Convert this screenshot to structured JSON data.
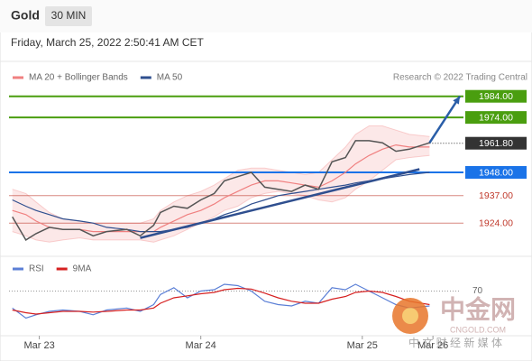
{
  "header": {
    "symbol": "Gold",
    "interval": "30 MIN",
    "timestamp": "Friday, March 25, 2022 2:50:41 AM CET"
  },
  "source": "Research © 2022 Trading Central",
  "watermark": {
    "brand": "中金网",
    "site": "CNGOLD.COM",
    "tagline": "中 文 财 经 新 媒 体"
  },
  "chart_data": [
    {
      "type": "line",
      "x": [
        -4,
        -2,
        -0.5,
        1.5,
        3.5,
        6,
        8,
        10,
        13,
        15,
        17,
        18,
        20,
        22,
        24,
        26,
        27.5,
        29.5,
        31.5,
        33.5,
        35.5,
        37.5,
        39.5,
        41.5,
        43.5,
        45.5,
        47,
        49,
        51,
        53,
        55,
        58
      ],
      "values": [
        1927,
        1916,
        1919,
        1922,
        1921,
        1921,
        1918,
        1920,
        1921,
        1918,
        1923,
        1929,
        1932,
        1931,
        1935,
        1938,
        1944,
        1946,
        1948,
        1941,
        1940,
        1939,
        1942,
        1940,
        1953,
        1955,
        1963,
        1963,
        1962,
        1958,
        1959,
        1962
      ],
      "color": "#555555",
      "series": [
        {
          "name": "MA 20 + Bollinger Bands",
          "color": "#f08080",
          "values": [
            1930,
            1928,
            1925,
            1922,
            1921,
            1921,
            1920,
            1920,
            1920,
            1920,
            1920,
            1922,
            1925,
            1928,
            1930,
            1933,
            1936,
            1939,
            1942,
            1944,
            1944,
            1943,
            1942,
            1941,
            1944,
            1948,
            1952,
            1956,
            1959,
            1961,
            1960,
            1960
          ],
          "upper": [
            1940,
            1938,
            1934,
            1929,
            1926,
            1925,
            1924,
            1924,
            1924,
            1924,
            1926,
            1930,
            1934,
            1937,
            1939,
            1942,
            1945,
            1949,
            1950,
            1950,
            1949,
            1948,
            1947,
            1948,
            1954,
            1960,
            1966,
            1970,
            1970,
            1968,
            1966,
            1965
          ],
          "lower": [
            1920,
            1918,
            1916,
            1915,
            1916,
            1917,
            1916,
            1916,
            1916,
            1916,
            1915,
            1916,
            1918,
            1921,
            1924,
            1927,
            1930,
            1932,
            1936,
            1938,
            1939,
            1938,
            1937,
            1935,
            1934,
            1936,
            1940,
            1944,
            1949,
            1954,
            1955,
            1956
          ]
        },
        {
          "name": "MA 50",
          "color": "#2f4f8f",
          "values": [
            1935,
            1932,
            1930,
            1928,
            1926,
            1925,
            1924,
            1922,
            1921,
            1920,
            1920,
            1920,
            1921,
            1922,
            1924,
            1926,
            1928,
            1930,
            1933,
            1935,
            1937,
            1938,
            1939,
            1940,
            1941,
            1942,
            1943,
            1944,
            1945,
            1946,
            1947,
            1948
          ]
        }
      ],
      "levels": [
        {
          "value": 1984,
          "label": "1984.00",
          "color": "#4a9e0f",
          "filled": true
        },
        {
          "value": 1974,
          "label": "1974.00",
          "color": "#4a9e0f",
          "filled": true
        },
        {
          "value": 1961.8,
          "label": "1961.80",
          "color": "#333333",
          "filled": true,
          "dotted": true
        },
        {
          "value": 1948,
          "label": "1948.00",
          "color": "#1a73e8",
          "filled": true
        },
        {
          "value": 1937,
          "label": "1937.00",
          "color": "#c0392b",
          "filled": false
        },
        {
          "value": 1924,
          "label": "1924.00",
          "color": "#c0392b",
          "filled": false
        }
      ],
      "trendline": {
        "x": [
          15,
          56.5
        ],
        "values": [
          1917,
          1949.5
        ],
        "color": "#2f4f8f"
      },
      "arrow": {
        "x": [
          58,
          62.5
        ],
        "values": [
          1962,
          1984
        ],
        "color": "#2a5ea8"
      },
      "xlim": [
        -4.5,
        62.5
      ],
      "ylim": [
        1910,
        1989
      ],
      "xticks": [
        {
          "value": 0,
          "label": "Mar 23"
        },
        {
          "value": 24,
          "label": "Mar 24"
        },
        {
          "value": 48,
          "label": "Mar 25"
        },
        {
          "value": 58.5,
          "label": "Mar 26"
        }
      ]
    },
    {
      "type": "line",
      "x": [
        -4,
        -2,
        -0.5,
        1.5,
        3.5,
        6,
        8,
        10,
        13,
        15,
        17,
        18,
        20,
        22,
        24,
        26,
        27.5,
        29.5,
        31.5,
        33.5,
        35.5,
        37.5,
        39.5,
        41.5,
        43.5,
        45.5,
        47,
        49,
        51,
        53,
        55,
        58
      ],
      "series": [
        {
          "name": "RSI",
          "color": "#5b7fd6",
          "values": [
            45,
            30,
            35,
            40,
            42,
            40,
            35,
            42,
            45,
            40,
            50,
            65,
            75,
            60,
            70,
            72,
            80,
            78,
            70,
            55,
            50,
            48,
            55,
            52,
            75,
            72,
            80,
            70,
            60,
            50,
            45,
            48
          ]
        },
        {
          "name": "9MA",
          "color": "#d62020",
          "values": [
            42,
            38,
            36,
            38,
            40,
            40,
            39,
            40,
            42,
            42,
            45,
            52,
            60,
            63,
            66,
            68,
            72,
            74,
            73,
            67,
            60,
            55,
            52,
            52,
            58,
            62,
            68,
            70,
            68,
            62,
            55,
            50
          ]
        }
      ],
      "xlim": [
        -4.5,
        62.5
      ],
      "ylim": [
        0,
        100
      ],
      "yticks": [
        70
      ],
      "grid": true
    }
  ]
}
